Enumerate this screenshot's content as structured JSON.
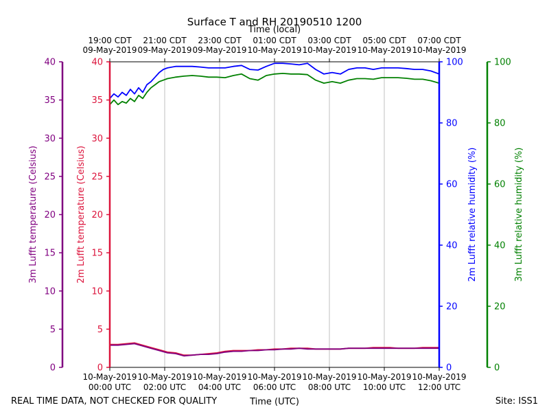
{
  "chart_data": {
    "type": "line",
    "title": "Surface T and RH 20190510 1200",
    "top_axis_label": "Time (local)",
    "xlabel": "Time (UTC)",
    "footer_left": "REAL TIME DATA, NOT CHECKED FOR QUALITY",
    "footer_right": "Site: ISS1",
    "x_range_hours": [
      0,
      12
    ],
    "bottom_ticks": [
      {
        "hour": 0,
        "date": "10-May-2019",
        "time": "00:00 UTC"
      },
      {
        "hour": 2,
        "date": "10-May-2019",
        "time": "02:00 UTC"
      },
      {
        "hour": 4,
        "date": "10-May-2019",
        "time": "04:00 UTC"
      },
      {
        "hour": 6,
        "date": "10-May-2019",
        "time": "06:00 UTC"
      },
      {
        "hour": 8,
        "date": "10-May-2019",
        "time": "08:00 UTC"
      },
      {
        "hour": 10,
        "date": "10-May-2019",
        "time": "10:00 UTC"
      },
      {
        "hour": 12,
        "date": "10-May-2019",
        "time": "12:00 UTC"
      }
    ],
    "top_ticks": [
      {
        "hour": 0,
        "time": "19:00 CDT",
        "date": "09-May-2019"
      },
      {
        "hour": 2,
        "time": "21:00 CDT",
        "date": "09-May-2019"
      },
      {
        "hour": 4,
        "time": "23:00 CDT",
        "date": "09-May-2019"
      },
      {
        "hour": 6,
        "time": "01:00 CDT",
        "date": "10-May-2019"
      },
      {
        "hour": 8,
        "time": "03:00 CDT",
        "date": "10-May-2019"
      },
      {
        "hour": 10,
        "time": "05:00 CDT",
        "date": "10-May-2019"
      },
      {
        "hour": 12,
        "time": "07:00 CDT",
        "date": "10-May-2019"
      }
    ],
    "axes": {
      "temp3m": {
        "label": "3m Lufft temperature (Celsius)",
        "range": [
          0,
          40
        ],
        "ticks": [
          0,
          5,
          10,
          15,
          20,
          25,
          30,
          35,
          40
        ],
        "color": "#800080"
      },
      "temp2m": {
        "label": "2m Lufft temperature (Celsius)",
        "range": [
          0,
          40
        ],
        "ticks": [
          0,
          5,
          10,
          15,
          20,
          25,
          30,
          35,
          40
        ],
        "color": "#dc143c"
      },
      "rh2m": {
        "label": "2m Lufft relative humidity (%)",
        "range": [
          0,
          100
        ],
        "ticks": [
          0,
          20,
          40,
          60,
          80,
          100
        ],
        "color": "#0000ff"
      },
      "rh3m": {
        "label": "3m Lufft relative humidity (%)",
        "range": [
          0,
          100
        ],
        "ticks": [
          0,
          20,
          40,
          60,
          80,
          100
        ],
        "color": "#008000"
      }
    },
    "series": [
      {
        "name": "2m Lufft relative humidity (%)",
        "axis": "rh2m",
        "color": "#0000ff",
        "x": [
          0,
          0.15,
          0.3,
          0.45,
          0.6,
          0.75,
          0.9,
          1.05,
          1.2,
          1.35,
          1.5,
          1.65,
          1.8,
          1.95,
          2.1,
          2.4,
          2.7,
          3.0,
          3.3,
          3.6,
          3.9,
          4.2,
          4.5,
          4.8,
          5.1,
          5.4,
          5.7,
          6.0,
          6.3,
          6.6,
          6.9,
          7.2,
          7.5,
          7.8,
          8.1,
          8.4,
          8.7,
          9.0,
          9.3,
          9.6,
          9.9,
          10.2,
          10.5,
          10.8,
          11.1,
          11.4,
          11.7,
          12.0
        ],
        "y": [
          88,
          89.5,
          88.5,
          90,
          89,
          91,
          89.5,
          91.5,
          90,
          92.5,
          93.5,
          95,
          96.5,
          97.5,
          98,
          98.5,
          98.5,
          98.5,
          98.3,
          98,
          98,
          98,
          98.5,
          98.8,
          97.5,
          97.3,
          98.5,
          99.5,
          99.5,
          99.3,
          99,
          99.5,
          97.5,
          96,
          96.5,
          96,
          97.5,
          98,
          98,
          97.5,
          98,
          98,
          98,
          97.8,
          97.5,
          97.5,
          97,
          96
        ]
      },
      {
        "name": "3m Lufft relative humidity (%)",
        "axis": "rh3m",
        "color": "#008000",
        "x": [
          0,
          0.15,
          0.3,
          0.45,
          0.6,
          0.75,
          0.9,
          1.05,
          1.2,
          1.35,
          1.5,
          1.65,
          1.8,
          1.95,
          2.1,
          2.4,
          2.7,
          3.0,
          3.3,
          3.6,
          3.9,
          4.2,
          4.5,
          4.8,
          5.1,
          5.4,
          5.7,
          6.0,
          6.3,
          6.6,
          6.9,
          7.2,
          7.5,
          7.8,
          8.1,
          8.4,
          8.7,
          9.0,
          9.3,
          9.6,
          9.9,
          10.2,
          10.5,
          10.8,
          11.1,
          11.4,
          11.7,
          12.0
        ],
        "y": [
          86,
          87.5,
          86,
          87,
          86.5,
          88,
          87,
          89,
          88,
          90,
          91.5,
          92.5,
          93.5,
          94,
          94.5,
          95,
          95.3,
          95.5,
          95.3,
          95,
          95,
          94.8,
          95.5,
          96,
          94.5,
          94,
          95.5,
          96,
          96.2,
          96,
          96,
          95.8,
          94,
          93,
          93.5,
          93,
          94,
          94.5,
          94.5,
          94.3,
          94.8,
          94.8,
          94.8,
          94.6,
          94.3,
          94.3,
          93.8,
          93
        ]
      },
      {
        "name": "2m Lufft temperature (Celsius)",
        "axis": "temp2m",
        "color": "#dc143c",
        "x": [
          0,
          0.3,
          0.6,
          0.9,
          1.2,
          1.5,
          1.8,
          2.1,
          2.4,
          2.7,
          3.0,
          3.3,
          3.6,
          3.9,
          4.2,
          4.5,
          4.8,
          5.1,
          5.4,
          5.7,
          6.0,
          6.3,
          6.6,
          6.9,
          7.2,
          7.5,
          7.8,
          8.1,
          8.4,
          8.7,
          9.0,
          9.3,
          9.6,
          9.9,
          10.2,
          10.5,
          10.8,
          11.1,
          11.4,
          11.7,
          12.0
        ],
        "y": [
          3.0,
          3.0,
          3.1,
          3.2,
          2.9,
          2.6,
          2.3,
          2.0,
          1.9,
          1.6,
          1.6,
          1.7,
          1.8,
          1.9,
          2.1,
          2.2,
          2.2,
          2.2,
          2.3,
          2.3,
          2.4,
          2.4,
          2.5,
          2.5,
          2.5,
          2.4,
          2.4,
          2.4,
          2.4,
          2.5,
          2.5,
          2.5,
          2.6,
          2.6,
          2.6,
          2.5,
          2.5,
          2.5,
          2.6,
          2.6,
          2.6
        ]
      },
      {
        "name": "3m Lufft temperature (Celsius)",
        "axis": "temp3m",
        "color": "#800080",
        "x": [
          0,
          0.3,
          0.6,
          0.9,
          1.2,
          1.5,
          1.8,
          2.1,
          2.4,
          2.7,
          3.0,
          3.3,
          3.6,
          3.9,
          4.2,
          4.5,
          4.8,
          5.1,
          5.4,
          5.7,
          6.0,
          6.3,
          6.6,
          6.9,
          7.2,
          7.5,
          7.8,
          8.1,
          8.4,
          8.7,
          9.0,
          9.3,
          9.6,
          9.9,
          10.2,
          10.5,
          10.8,
          11.1,
          11.4,
          11.7,
          12.0
        ],
        "y": [
          2.9,
          2.9,
          3.0,
          3.1,
          2.8,
          2.5,
          2.2,
          1.9,
          1.8,
          1.5,
          1.6,
          1.7,
          1.7,
          1.8,
          2.0,
          2.1,
          2.1,
          2.2,
          2.2,
          2.3,
          2.3,
          2.4,
          2.4,
          2.5,
          2.4,
          2.4,
          2.4,
          2.4,
          2.4,
          2.5,
          2.5,
          2.5,
          2.5,
          2.5,
          2.5,
          2.5,
          2.5,
          2.5,
          2.5,
          2.5,
          2.5
        ]
      }
    ]
  }
}
